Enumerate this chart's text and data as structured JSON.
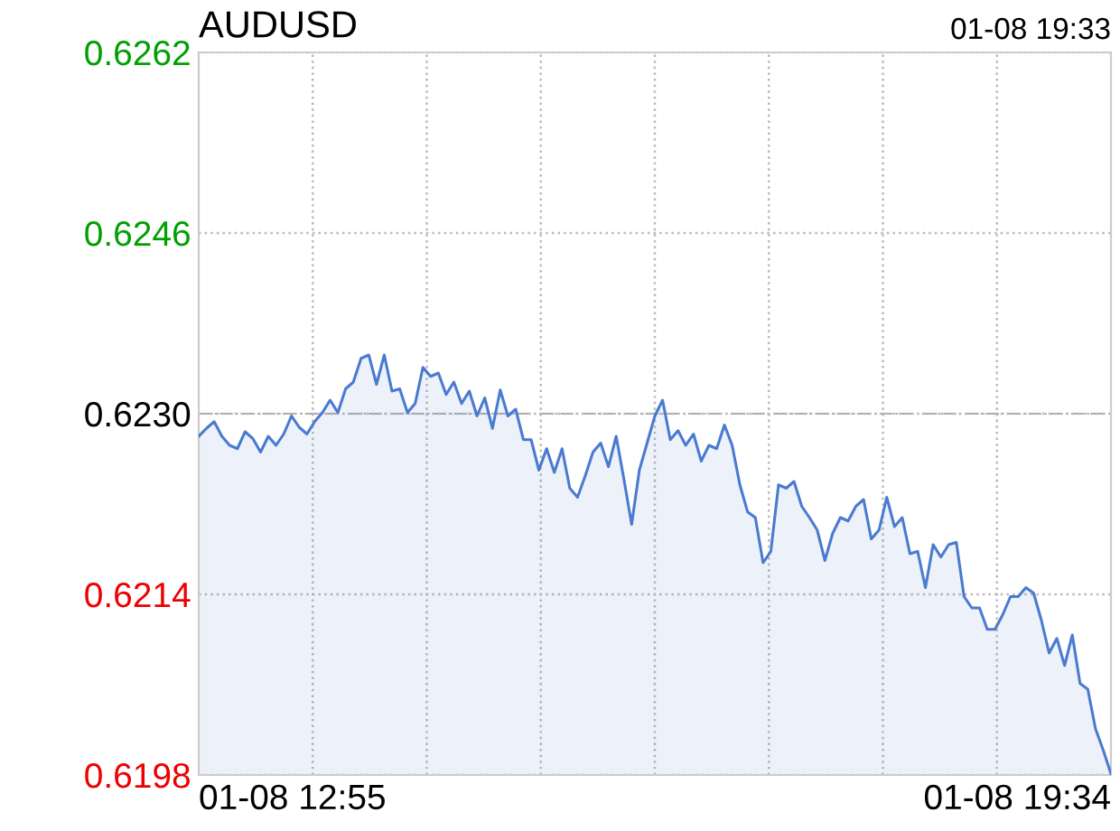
{
  "chart_data": {
    "type": "area",
    "title": "AUDUSD",
    "subtitle": "01-08 19:33",
    "annotations": [
      "01-08 12:55",
      "01-08 19:34"
    ],
    "categories": [
      null,
      null,
      null,
      null,
      null,
      null,
      null,
      null,
      null,
      null,
      null,
      null,
      null,
      null,
      null,
      null,
      null,
      null,
      null,
      null,
      null,
      null,
      null,
      null,
      null,
      null,
      null,
      null,
      null,
      null,
      null,
      null,
      null,
      null,
      null,
      null,
      null,
      null,
      null,
      null,
      null,
      null,
      null,
      null,
      null,
      null,
      null,
      null,
      null,
      null,
      null,
      null,
      null,
      null,
      null,
      null,
      null,
      null,
      null,
      null,
      null,
      null,
      null,
      null,
      null,
      null,
      null,
      null,
      null,
      null,
      null,
      null,
      null,
      null,
      null,
      null,
      null,
      null,
      null,
      null,
      null,
      null,
      null,
      null,
      null,
      null,
      null,
      null,
      null,
      null,
      null,
      null,
      null,
      null,
      null,
      null,
      null,
      null,
      null,
      null,
      null,
      null,
      null,
      null,
      null,
      null,
      null,
      null,
      null,
      null,
      null,
      null,
      null,
      null,
      null,
      null,
      null,
      null,
      null
    ],
    "series": [
      {
        "color": "#4a7bd0",
        "values": [
          0.6228,
          0.62287,
          0.62293,
          0.6228,
          0.62272,
          0.62269,
          0.62284,
          0.62278,
          0.62266,
          0.6228,
          0.62272,
          0.62282,
          0.62298,
          0.62288,
          0.62282,
          0.62293,
          0.62301,
          0.62312,
          0.62301,
          0.62322,
          0.62328,
          0.62349,
          0.62352,
          0.62326,
          0.62352,
          0.6232,
          0.62322,
          0.62301,
          0.62309,
          0.62341,
          0.62333,
          0.62336,
          0.62317,
          0.62328,
          0.62309,
          0.6232,
          0.62298,
          0.62314,
          0.62287,
          0.62321,
          0.62298,
          0.62304,
          0.62277,
          0.62277,
          0.6225,
          0.62269,
          0.62248,
          0.62269,
          0.62234,
          0.62226,
          0.62245,
          0.62266,
          0.62274,
          0.62253,
          0.6228,
          0.62242,
          0.62202,
          0.6225,
          0.62274,
          0.62298,
          0.62312,
          0.62277,
          0.62285,
          0.62272,
          0.62282,
          0.62258,
          0.62272,
          0.62269,
          0.6229,
          0.62272,
          0.62237,
          0.62213,
          0.62208,
          0.62168,
          0.62178,
          0.62237,
          0.62234,
          0.6224,
          0.62218,
          0.62208,
          0.62197,
          0.6217,
          0.62194,
          0.62208,
          0.62205,
          0.62218,
          0.62224,
          0.62189,
          0.62197,
          0.62226,
          0.622,
          0.62208,
          0.62176,
          0.62178,
          0.62146,
          0.62184,
          0.62173,
          0.62184,
          0.62186,
          0.62138,
          0.62128,
          0.62128,
          0.62109,
          0.62109,
          0.62122,
          0.62138,
          0.62138,
          0.62146,
          0.62141,
          0.62117,
          0.62088,
          0.62101,
          0.62077,
          0.62104,
          0.62061,
          0.62056,
          0.62021,
          0.62002,
          0.61981
        ]
      }
    ],
    "ylim": [
      0.6198,
      0.6262
    ],
    "yticks": [
      {
        "value": 0.6262,
        "label": "0.6262"
      },
      {
        "value": 0.6246,
        "label": "0.6246"
      },
      {
        "value": 0.623,
        "label": "0.6230"
      },
      {
        "value": 0.6214,
        "label": "0.6214"
      },
      {
        "value": 0.6198,
        "label": "0.6198"
      }
    ],
    "ref_lines": [
      {
        "axis": "y",
        "value": 0.623,
        "color": "#aaaaaa",
        "line_style": "dashdot"
      }
    ],
    "grid": true
  }
}
